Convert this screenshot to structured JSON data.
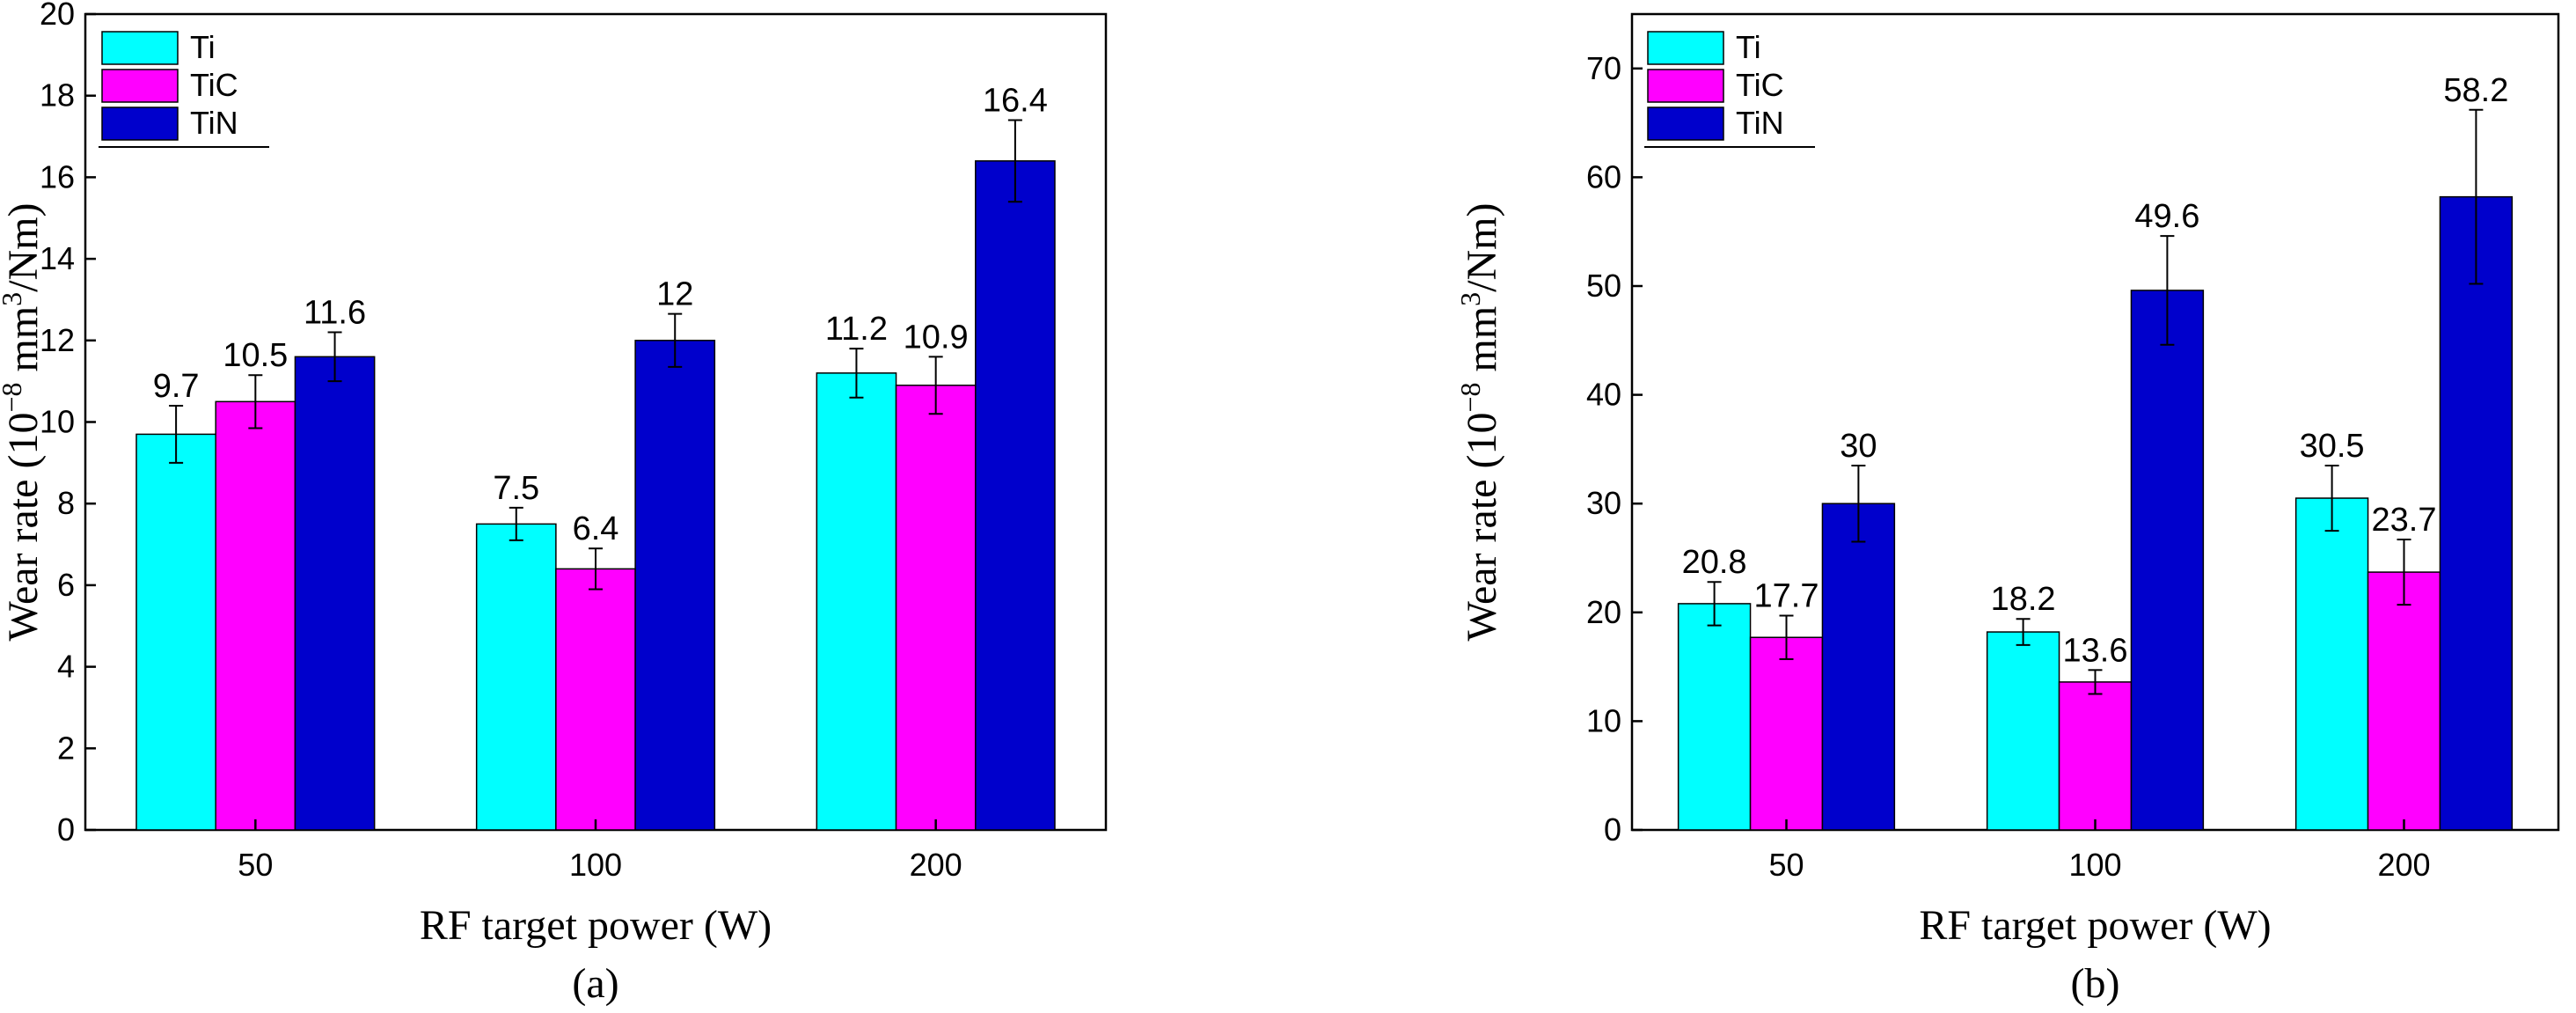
{
  "chart_data": [
    {
      "type": "bar",
      "panel_label": "(a)",
      "categories": [
        "50",
        "100",
        "200"
      ],
      "series": [
        {
          "name": "Ti",
          "color": "#00FFFF",
          "values": [
            9.7,
            7.5,
            11.2
          ],
          "errors": [
            0.7,
            0.4,
            0.6
          ],
          "labels": [
            "9.7",
            "7.5",
            "11.2"
          ]
        },
        {
          "name": "TiC",
          "color": "#FF00FF",
          "values": [
            10.5,
            6.4,
            10.9
          ],
          "errors": [
            0.65,
            0.5,
            0.7
          ],
          "labels": [
            "10.5",
            "6.4",
            "10.9"
          ]
        },
        {
          "name": "TiN",
          "color": "#0000CC",
          "values": [
            11.6,
            12,
            16.4
          ],
          "errors": [
            0.6,
            0.65,
            1.0
          ],
          "labels": [
            "11.6",
            "12",
            "16.4"
          ]
        }
      ],
      "xlabel": "RF target power (W)",
      "ylabel_prefix": "Wear rate (10",
      "ylabel_exp1": "−8",
      "ylabel_mid": " mm",
      "ylabel_exp2": "3",
      "ylabel_suffix": "/Nm)",
      "ylim": [
        0,
        20
      ],
      "yticks": [
        "0",
        "2",
        "4",
        "6",
        "8",
        "10",
        "12",
        "14",
        "16",
        "18",
        "20"
      ],
      "legend_position": "top-left"
    },
    {
      "type": "bar",
      "panel_label": "(b)",
      "categories": [
        "50",
        "100",
        "200"
      ],
      "series": [
        {
          "name": "Ti",
          "color": "#00FFFF",
          "values": [
            20.8,
            18.2,
            30.5
          ],
          "errors": [
            2.0,
            1.2,
            3.0
          ],
          "labels": [
            "20.8",
            "18.2",
            "30.5"
          ]
        },
        {
          "name": "TiC",
          "color": "#FF00FF",
          "values": [
            17.7,
            13.6,
            23.7
          ],
          "errors": [
            2.0,
            1.1,
            3.0
          ],
          "labels": [
            "17.7",
            "13.6",
            "23.7"
          ]
        },
        {
          "name": "TiN",
          "color": "#0000CC",
          "values": [
            30,
            49.6,
            58.2
          ],
          "errors": [
            3.5,
            5.0,
            8.0
          ],
          "labels": [
            "30",
            "49.6",
            "58.2"
          ]
        }
      ],
      "xlabel": "RF target power (W)",
      "ylabel_prefix": "Wear rate (10",
      "ylabel_exp1": "−8",
      "ylabel_mid": " mm",
      "ylabel_exp2": "3",
      "ylabel_suffix": "/Nm)",
      "ylim": [
        0,
        75
      ],
      "yticks": [
        "0",
        "10",
        "20",
        "30",
        "40",
        "50",
        "60",
        "70"
      ],
      "legend_position": "top-left"
    }
  ]
}
